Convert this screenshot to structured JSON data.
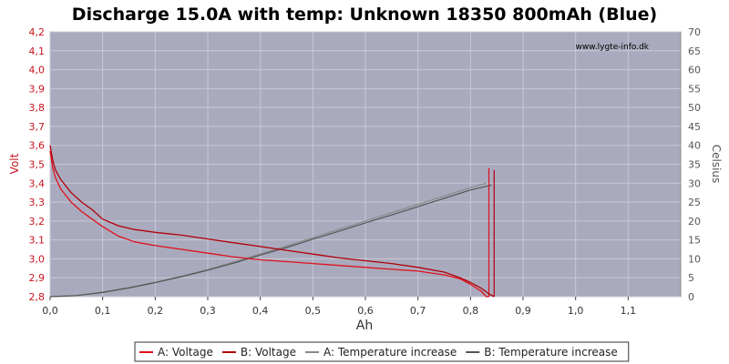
{
  "chart_data": {
    "type": "line",
    "title": "Discharge 15.0A with temp: Unknown 18350 800mAh (Blue)",
    "watermark": "www.lygte-info.dk",
    "xlabel": "Ah",
    "ylabel_left": "Volt",
    "ylabel_right": "Celsius",
    "xlim": [
      0,
      1.2
    ],
    "ylim_left": [
      2.8,
      4.2
    ],
    "ylim_right": [
      0,
      70
    ],
    "x_ticks": [
      "0,0",
      "0,1",
      "0,2",
      "0,3",
      "0,4",
      "0,5",
      "0,6",
      "0,7",
      "0,8",
      "0,9",
      "1,0",
      "1,1"
    ],
    "y_left_ticks": [
      "2,8",
      "2,9",
      "3,0",
      "3,1",
      "3,2",
      "3,3",
      "3,4",
      "3,5",
      "3,6",
      "3,7",
      "3,8",
      "3,9",
      "4,0",
      "4,1",
      "4,2"
    ],
    "y_right_ticks": [
      "0",
      "5",
      "10",
      "15",
      "20",
      "25",
      "30",
      "35",
      "40",
      "45",
      "50",
      "55",
      "60",
      "65",
      "70"
    ],
    "grid": true,
    "legend_position": "bottom",
    "colors": {
      "plot_bg": "#aaaabe",
      "grid": "#c8c8d6",
      "voltage_a": "#e0101a",
      "voltage_b": "#b00008",
      "temp_a": "#8a8a8a",
      "temp_b": "#555555"
    },
    "series": [
      {
        "name": "A: Voltage",
        "axis": "left",
        "color_key": "voltage_a",
        "x": [
          0,
          0.005,
          0.01,
          0.02,
          0.04,
          0.06,
          0.08,
          0.1,
          0.13,
          0.16,
          0.2,
          0.25,
          0.3,
          0.35,
          0.4,
          0.45,
          0.5,
          0.55,
          0.6,
          0.65,
          0.7,
          0.75,
          0.78,
          0.8,
          0.82,
          0.83,
          0.835
        ],
        "y": [
          3.57,
          3.48,
          3.43,
          3.37,
          3.3,
          3.25,
          3.21,
          3.17,
          3.12,
          3.09,
          3.07,
          3.05,
          3.03,
          3.01,
          2.995,
          2.985,
          2.975,
          2.965,
          2.955,
          2.945,
          2.935,
          2.915,
          2.895,
          2.865,
          2.83,
          2.8,
          2.8
        ]
      },
      {
        "name": "B: Voltage",
        "axis": "left",
        "color_key": "voltage_b",
        "x": [
          0,
          0.005,
          0.01,
          0.02,
          0.04,
          0.06,
          0.08,
          0.1,
          0.13,
          0.16,
          0.2,
          0.25,
          0.3,
          0.35,
          0.4,
          0.45,
          0.5,
          0.55,
          0.6,
          0.65,
          0.7,
          0.75,
          0.78,
          0.8,
          0.82,
          0.835,
          0.845
        ],
        "y": [
          3.6,
          3.52,
          3.47,
          3.42,
          3.35,
          3.3,
          3.26,
          3.21,
          3.175,
          3.155,
          3.14,
          3.125,
          3.105,
          3.085,
          3.065,
          3.045,
          3.025,
          3.005,
          2.99,
          2.975,
          2.955,
          2.93,
          2.9,
          2.875,
          2.845,
          2.815,
          2.8
        ]
      },
      {
        "name": "A: Temperature increase",
        "axis": "right",
        "color_key": "temp_a",
        "x": [
          0,
          0.05,
          0.1,
          0.15,
          0.2,
          0.25,
          0.3,
          0.35,
          0.4,
          0.45,
          0.5,
          0.55,
          0.6,
          0.65,
          0.7,
          0.75,
          0.8,
          0.83
        ],
        "y": [
          0,
          0.3,
          1.2,
          2.4,
          3.8,
          5.4,
          7.2,
          9.2,
          11.3,
          13.4,
          15.6,
          17.8,
          20,
          22.2,
          24.4,
          26.6,
          28.8,
          30
        ]
      },
      {
        "name": "B: Temperature increase",
        "axis": "right",
        "color_key": "temp_b",
        "x": [
          0,
          0.05,
          0.1,
          0.15,
          0.2,
          0.25,
          0.3,
          0.35,
          0.4,
          0.45,
          0.5,
          0.55,
          0.6,
          0.65,
          0.7,
          0.75,
          0.8,
          0.84
        ],
        "y": [
          0,
          0.3,
          1.1,
          2.3,
          3.7,
          5.3,
          7.0,
          8.9,
          11.0,
          13.0,
          15.2,
          17.3,
          19.5,
          21.6,
          23.8,
          26.0,
          28.2,
          29.5
        ]
      }
    ]
  }
}
